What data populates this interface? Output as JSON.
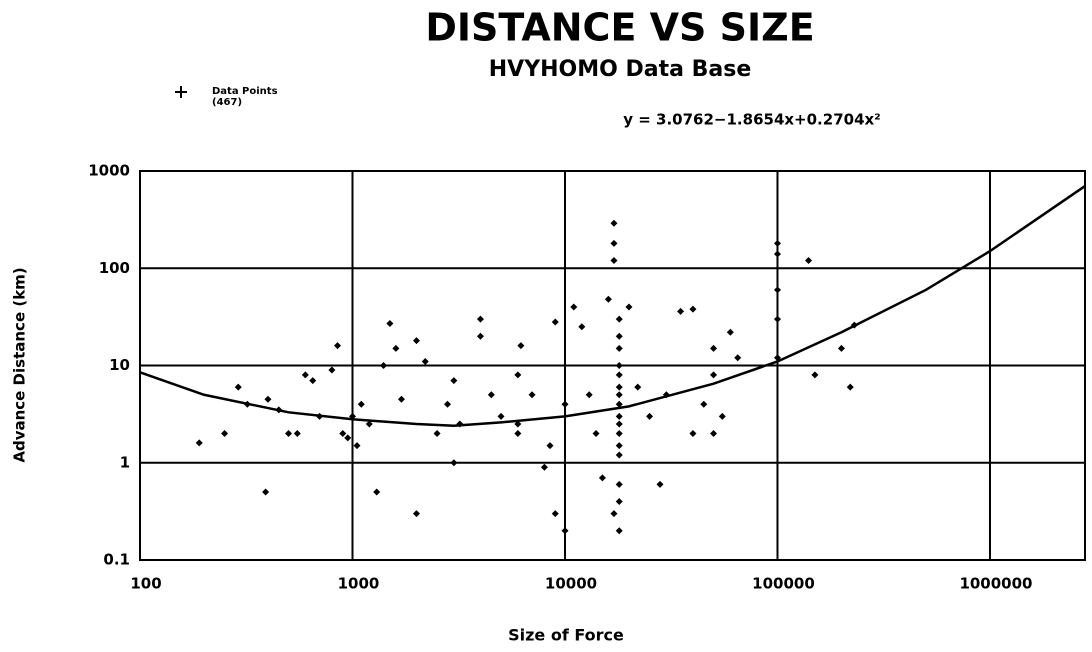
{
  "chart_data": {
    "type": "scatter",
    "title": "DISTANCE VS SIZE",
    "subtitle": "HVYHOMO Data Base",
    "annotation": "y = 3.0762−1.8654x+0.2704x²",
    "legend_count": "(467)",
    "x_label": "Size of Force",
    "y_label": "Advance Distance (km)",
    "log_x": true,
    "log_y": true,
    "grid": true,
    "xlim": [
      100,
      2800000
    ],
    "ylim": [
      0.1,
      1000
    ],
    "xticks": [
      100,
      1000,
      10000,
      100000,
      1000000
    ],
    "yticks": [
      0.1,
      1,
      10,
      100,
      1000
    ],
    "series": [
      {
        "name": "Data Points",
        "color": "#000000",
        "marker": "diamond",
        "x": [
          190,
          250,
          290,
          320,
          390,
          400,
          450,
          500,
          550,
          600,
          650,
          700,
          800,
          850,
          900,
          950,
          1000,
          1050,
          1100,
          1200,
          1300,
          1400,
          1500,
          1600,
          1700,
          2000,
          2000,
          2200,
          2500,
          2800,
          3000,
          3000,
          3200,
          4000,
          4000,
          4500,
          5000,
          6000,
          6000,
          6000,
          6200,
          7000,
          8000,
          8500,
          9000,
          9000,
          10000,
          10000,
          11000,
          12000,
          13000,
          14000,
          15000,
          16000,
          17000,
          17000,
          17000,
          17000,
          18000,
          18000,
          18000,
          18000,
          18000,
          18000,
          18000,
          18000,
          18000,
          18000,
          18000,
          18000,
          18000,
          18000,
          18000,
          18000,
          20000,
          22000,
          25000,
          28000,
          30000,
          35000,
          40000,
          40000,
          45000,
          50000,
          50000,
          50000,
          55000,
          60000,
          65000,
          100000,
          100000,
          100000,
          100000,
          100000,
          140000,
          150000,
          200000,
          220000,
          230000
        ],
        "values": [
          1.6,
          2,
          6,
          4,
          0.5,
          4.5,
          3.5,
          2,
          2,
          8,
          7,
          3,
          9,
          16,
          2,
          1.8,
          3,
          1.5,
          4,
          2.5,
          0.5,
          10,
          27,
          15,
          4.5,
          18,
          0.3,
          11,
          2,
          4,
          7,
          1,
          2.5,
          30,
          20,
          5,
          3,
          8,
          2,
          2.5,
          16,
          5,
          0.9,
          1.5,
          28,
          0.3,
          4,
          0.2,
          40,
          25,
          5,
          2,
          0.7,
          48,
          290,
          180,
          120,
          0.3,
          30,
          20,
          15,
          10,
          8,
          6,
          5,
          4,
          3,
          2.5,
          2,
          1.5,
          1.2,
          0.6,
          0.4,
          0.2,
          40,
          6,
          3,
          0.6,
          5,
          36,
          38,
          2,
          4,
          15,
          8,
          2,
          3,
          22,
          12,
          180,
          140,
          60,
          30,
          12,
          120,
          8,
          15,
          6,
          26
        ]
      },
      {
        "type": "line",
        "color": "#000000",
        "x": [
          100,
          200,
          500,
          1000,
          2000,
          3000,
          5000,
          10000,
          20000,
          50000,
          100000,
          200000,
          500000,
          1000000,
          2800000
        ],
        "values": [
          8.5,
          5,
          3.3,
          2.8,
          2.5,
          2.4,
          2.6,
          3,
          3.8,
          6.5,
          11,
          22,
          60,
          150,
          700
        ]
      }
    ]
  }
}
